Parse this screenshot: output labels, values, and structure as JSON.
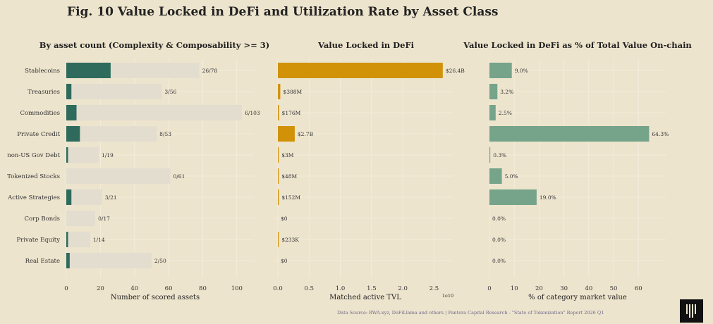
{
  "title": "Fig. 10  Value Locked in DeFi and Utilization Rate by Asset Class",
  "source": "Data Source: RWA.xyz, DeFiLlama and others | Pantera Capital Research - \"State of Tokenization\" Report 2026 Q1",
  "colors": {
    "background": "#ede4cd",
    "count_total": "#e3ddd0",
    "count_scored": "#2e6b5c",
    "tvl": "#d19208",
    "pct": "#75a48b"
  },
  "chart_data": [
    {
      "type": "bar",
      "orientation": "horizontal",
      "title": "By asset count (Complexity & Composability >= 3)",
      "xlabel": "Number of scored assets",
      "categories": [
        "Stablecoins",
        "Treasuries",
        "Commodities",
        "Private Credit",
        "non-US Gov Debt",
        "Tokenized Stocks",
        "Active Strategies",
        "Corp Bonds",
        "Private Equity",
        "Real Estate"
      ],
      "series": [
        {
          "values": [
            78,
            56,
            103,
            53,
            19,
            61,
            21,
            17,
            14,
            50
          ]
        },
        {
          "values": [
            26,
            3,
            6,
            8,
            1,
            0,
            3,
            0,
            1,
            2
          ]
        }
      ],
      "data_labels": [
        "26/78",
        "3/56",
        "6/103",
        "8/53",
        "1/19",
        "0/61",
        "3/21",
        "0/17",
        "1/14",
        "2/50"
      ],
      "xlim": [
        0,
        110
      ],
      "xticks": [
        "0",
        "20",
        "40",
        "60",
        "80",
        "100"
      ],
      "grid": true
    },
    {
      "type": "bar",
      "orientation": "horizontal",
      "title": "Value Locked in DeFi",
      "xlabel": "Matched active TVL",
      "x_offset_label": "1e10",
      "categories": [
        "Stablecoins",
        "Treasuries",
        "Commodities",
        "Private Credit",
        "non-US Gov Debt",
        "Tokenized Stocks",
        "Active Strategies",
        "Corp Bonds",
        "Private Equity",
        "Real Estate"
      ],
      "values": [
        26400000000,
        388000000,
        176000000,
        2700000000,
        3000000,
        48000000,
        152000000,
        0,
        233000,
        0
      ],
      "data_labels": [
        "$26.4B",
        "$388M",
        "$176M",
        "$2.7B",
        "$3M",
        "$48M",
        "$152M",
        "$0",
        "$233K",
        "$0"
      ],
      "xlim": [
        0,
        28000000000
      ],
      "xticks": [
        "0.0",
        "0.5",
        "1.0",
        "1.5",
        "2.0",
        "2.5"
      ],
      "grid": true
    },
    {
      "type": "bar",
      "orientation": "horizontal",
      "title": "Value Locked in DeFi as % of Total Value On-chain",
      "xlabel": "% of category market value",
      "categories": [
        "Stablecoins",
        "Treasuries",
        "Commodities",
        "Private Credit",
        "non-US Gov Debt",
        "Tokenized Stocks",
        "Active Strategies",
        "Corp Bonds",
        "Private Equity",
        "Real Estate"
      ],
      "values": [
        9.0,
        3.2,
        2.5,
        64.3,
        0.3,
        5.0,
        19.0,
        0.0,
        0.0,
        0.0
      ],
      "data_labels": [
        "9.0%",
        "3.2%",
        "2.5%",
        "64.3%",
        "0.3%",
        "5.0%",
        "19.0%",
        "0.0%",
        "0.0%",
        "0.0%"
      ],
      "xlim": [
        0,
        71
      ],
      "xticks": [
        "0",
        "10",
        "20",
        "30",
        "40",
        "50",
        "60"
      ],
      "grid": true
    }
  ]
}
